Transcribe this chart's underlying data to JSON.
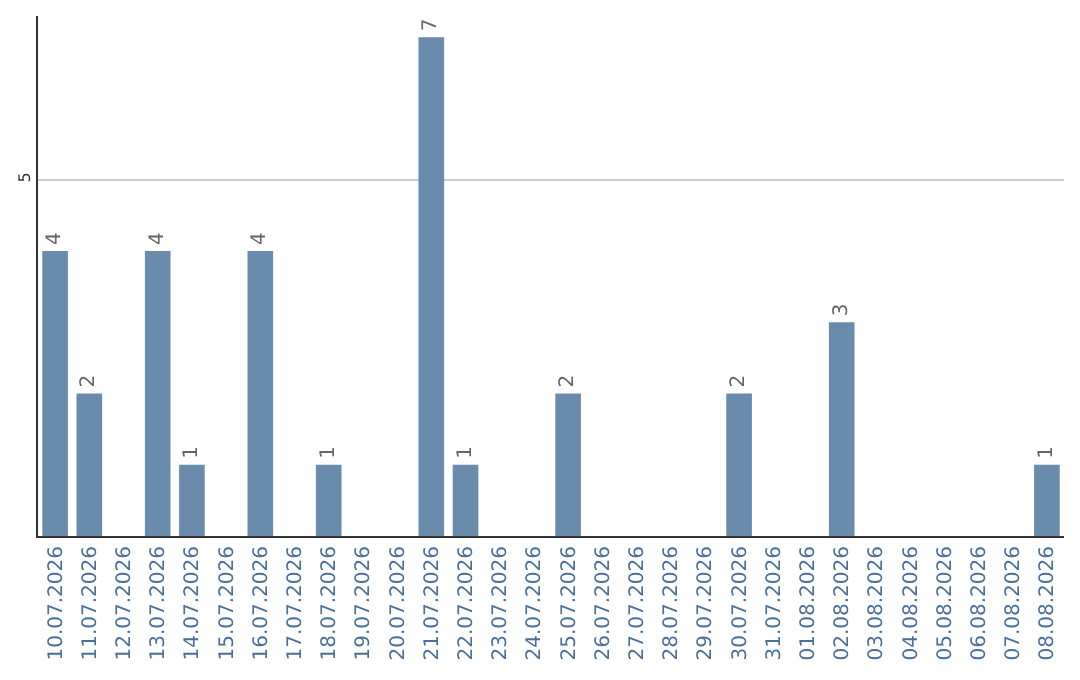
{
  "chart_data": {
    "type": "bar",
    "categories": [
      "10.07.2026",
      "11.07.2026",
      "12.07.2026",
      "13.07.2026",
      "14.07.2026",
      "15.07.2026",
      "16.07.2026",
      "17.07.2026",
      "18.07.2026",
      "19.07.2026",
      "20.07.2026",
      "21.07.2026",
      "22.07.2026",
      "23.07.2026",
      "24.07.2026",
      "25.07.2026",
      "26.07.2026",
      "27.07.2026",
      "28.07.2026",
      "29.07.2026",
      "30.07.2026",
      "31.07.2026",
      "01.08.2026",
      "02.08.2026",
      "03.08.2026",
      "04.08.2026",
      "05.08.2026",
      "06.08.2026",
      "07.08.2026",
      "08.08.2026"
    ],
    "values": [
      4,
      2,
      0,
      4,
      1,
      0,
      4,
      0,
      1,
      0,
      0,
      7,
      1,
      0,
      0,
      2,
      0,
      0,
      0,
      0,
      2,
      0,
      0,
      3,
      0,
      0,
      0,
      0,
      0,
      1
    ],
    "value_labels": [
      "4",
      "2",
      null,
      "4",
      "1",
      null,
      "4",
      null,
      "1",
      null,
      null,
      "7",
      "1",
      null,
      null,
      "2",
      null,
      null,
      null,
      null,
      "2",
      null,
      null,
      "3",
      null,
      null,
      null,
      null,
      null,
      "1"
    ],
    "color": "#6a8cac",
    "ylim": [
      0,
      7.3
    ],
    "yticks": [
      5
    ],
    "grid": "y",
    "legend": false
  }
}
